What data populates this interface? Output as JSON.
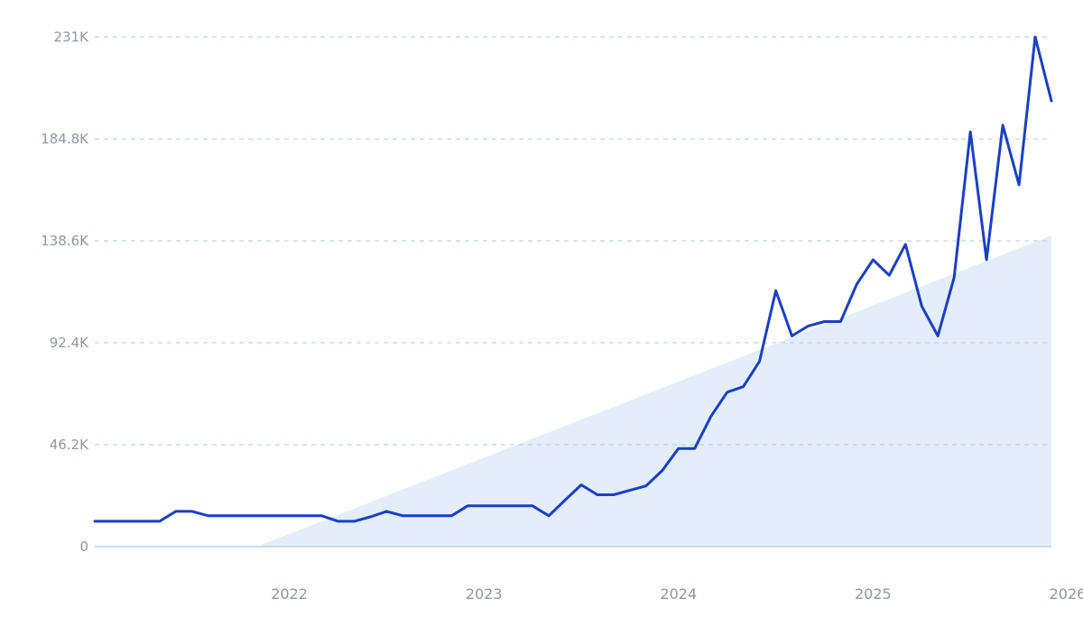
{
  "chart_data": {
    "type": "line",
    "title": "",
    "xlabel": "",
    "ylabel": "",
    "y_ticks": [
      "0",
      "46.2K",
      "92.4K",
      "138.6K",
      "184.8K",
      "231K"
    ],
    "y_tick_values": [
      0,
      46200,
      92400,
      138600,
      184800,
      231000
    ],
    "ylim": [
      0,
      231000
    ],
    "x_ticks": [
      "2022",
      "2023",
      "2024",
      "2025",
      "2026"
    ],
    "xlim": [
      "2021-06",
      "2026-05"
    ],
    "grid": true,
    "legend": "none",
    "line_color": "#1a3fc4",
    "trend_fill_color": "#e3eefa",
    "trend": {
      "x": [
        "2022-04",
        "2026-05"
      ],
      "y": [
        0,
        141000
      ]
    },
    "series": [
      {
        "x": [
          "2021-06",
          "2021-07",
          "2021-08",
          "2021-09",
          "2021-10",
          "2021-11",
          "2021-12",
          "2022-01",
          "2022-02",
          "2022-03",
          "2022-04",
          "2022-05",
          "2022-06",
          "2022-07",
          "2022-08",
          "2022-09",
          "2022-10",
          "2022-11",
          "2022-12",
          "2023-01",
          "2023-02",
          "2023-03",
          "2023-04",
          "2023-05",
          "2023-06",
          "2023-07",
          "2023-08",
          "2023-09",
          "2023-10",
          "2023-11",
          "2023-12",
          "2024-01",
          "2024-02",
          "2024-03",
          "2024-04",
          "2024-05",
          "2024-06",
          "2024-07",
          "2024-08",
          "2024-09",
          "2024-10",
          "2024-11",
          "2024-12",
          "2025-01",
          "2025-02",
          "2025-03",
          "2025-04",
          "2025-05",
          "2025-06",
          "2025-07",
          "2025-08",
          "2025-09",
          "2025-10",
          "2025-11",
          "2025-12",
          "2026-01",
          "2026-02",
          "2026-03",
          "2026-04",
          "2026-05"
        ],
        "values": [
          11500,
          11500,
          11500,
          11500,
          11500,
          16000,
          16000,
          14000,
          14000,
          14000,
          14000,
          14000,
          14000,
          14000,
          14000,
          11500,
          11500,
          13500,
          16000,
          14000,
          14000,
          14000,
          14000,
          18500,
          18500,
          18500,
          18500,
          18500,
          14000,
          21000,
          28000,
          23500,
          23500,
          25500,
          27500,
          34500,
          44500,
          44500,
          59000,
          70000,
          72500,
          84000,
          116000,
          95500,
          100000,
          102000,
          102000,
          119000,
          130000,
          123000,
          137000,
          109000,
          95500,
          122000,
          188000,
          130000,
          191000,
          164000,
          231000,
          202000
        ]
      }
    ]
  }
}
